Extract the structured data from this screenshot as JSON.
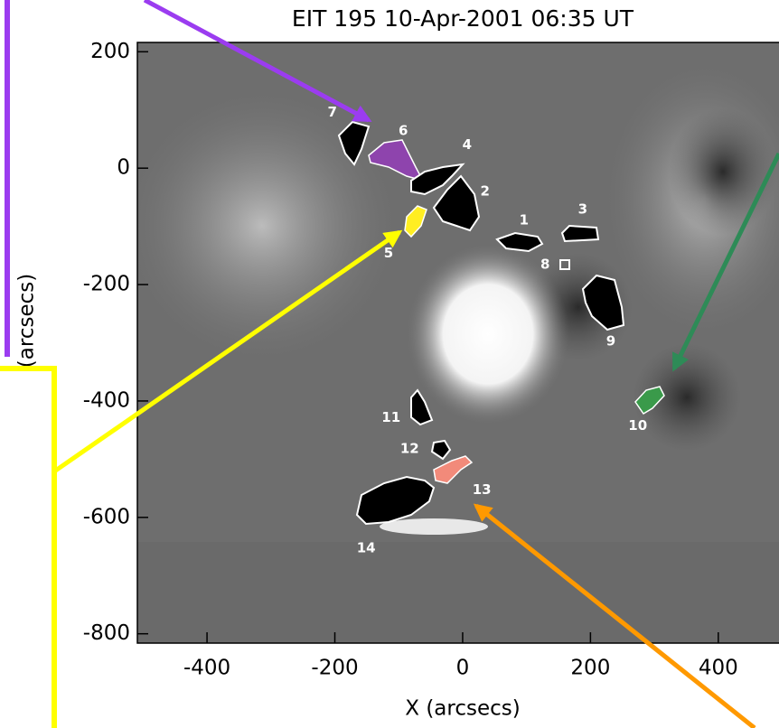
{
  "chart_data": {
    "type": "image",
    "title": "EIT 195 10-Apr-2001 06:35 UT",
    "x_label": "X (arcsecs)",
    "y_label": "(arcsecs)",
    "xlim": [
      -509,
      495
    ],
    "ylim": [
      -816,
      216
    ],
    "xticks": [
      -400,
      -200,
      0,
      200,
      400
    ],
    "yticks": [
      200,
      0,
      -200,
      -400,
      -600,
      -800
    ],
    "regions": {
      "labels": [
        "7",
        "6",
        "4",
        "2",
        "1",
        "3",
        "5",
        "8",
        "9",
        "10",
        "11",
        "12",
        "13",
        "14"
      ],
      "x": [
        -204,
        -93,
        7,
        35,
        96,
        188,
        -116,
        129,
        232,
        274,
        -112,
        -83,
        30,
        -151
      ],
      "y": [
        96,
        64,
        40,
        -40,
        -90,
        -71,
        -146,
        -166,
        -298,
        -443,
        -429,
        -482,
        -553,
        -653
      ]
    }
  }
}
